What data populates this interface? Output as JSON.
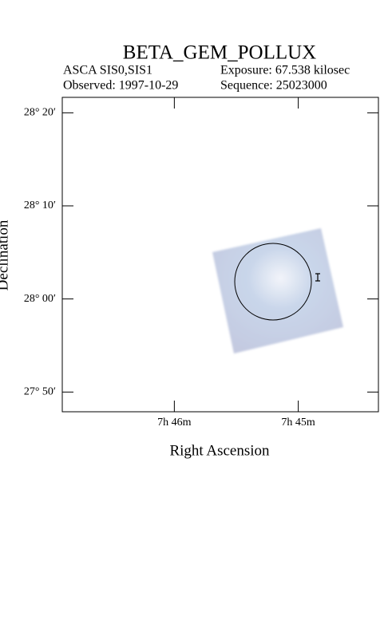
{
  "chart_data": {
    "type": "sky-image",
    "title": "BETA_GEM_POLLUX",
    "instrument": "ASCA SIS0,SIS1",
    "exposure": "Exposure: 67.538 kilosec",
    "observed": "Observed: 1997-10-29",
    "sequence": "Sequence: 25023000",
    "x_label": "Right Ascension",
    "y_label": "Declination",
    "xlim": [
      7.7818,
      7.7392
    ],
    "ylim": [
      27.798,
      28.361
    ],
    "xticks": [
      {
        "value": 7.7667,
        "label": "7h 46m"
      },
      {
        "value": 7.75,
        "label": "7h 45m"
      }
    ],
    "yticks": [
      {
        "value": 28.3333,
        "label": "28° 20′"
      },
      {
        "value": 28.1667,
        "label": "28° 10′"
      },
      {
        "value": 28.0,
        "label": "28° 00′"
      },
      {
        "value": 27.8333,
        "label": "27° 50′"
      }
    ]
  }
}
